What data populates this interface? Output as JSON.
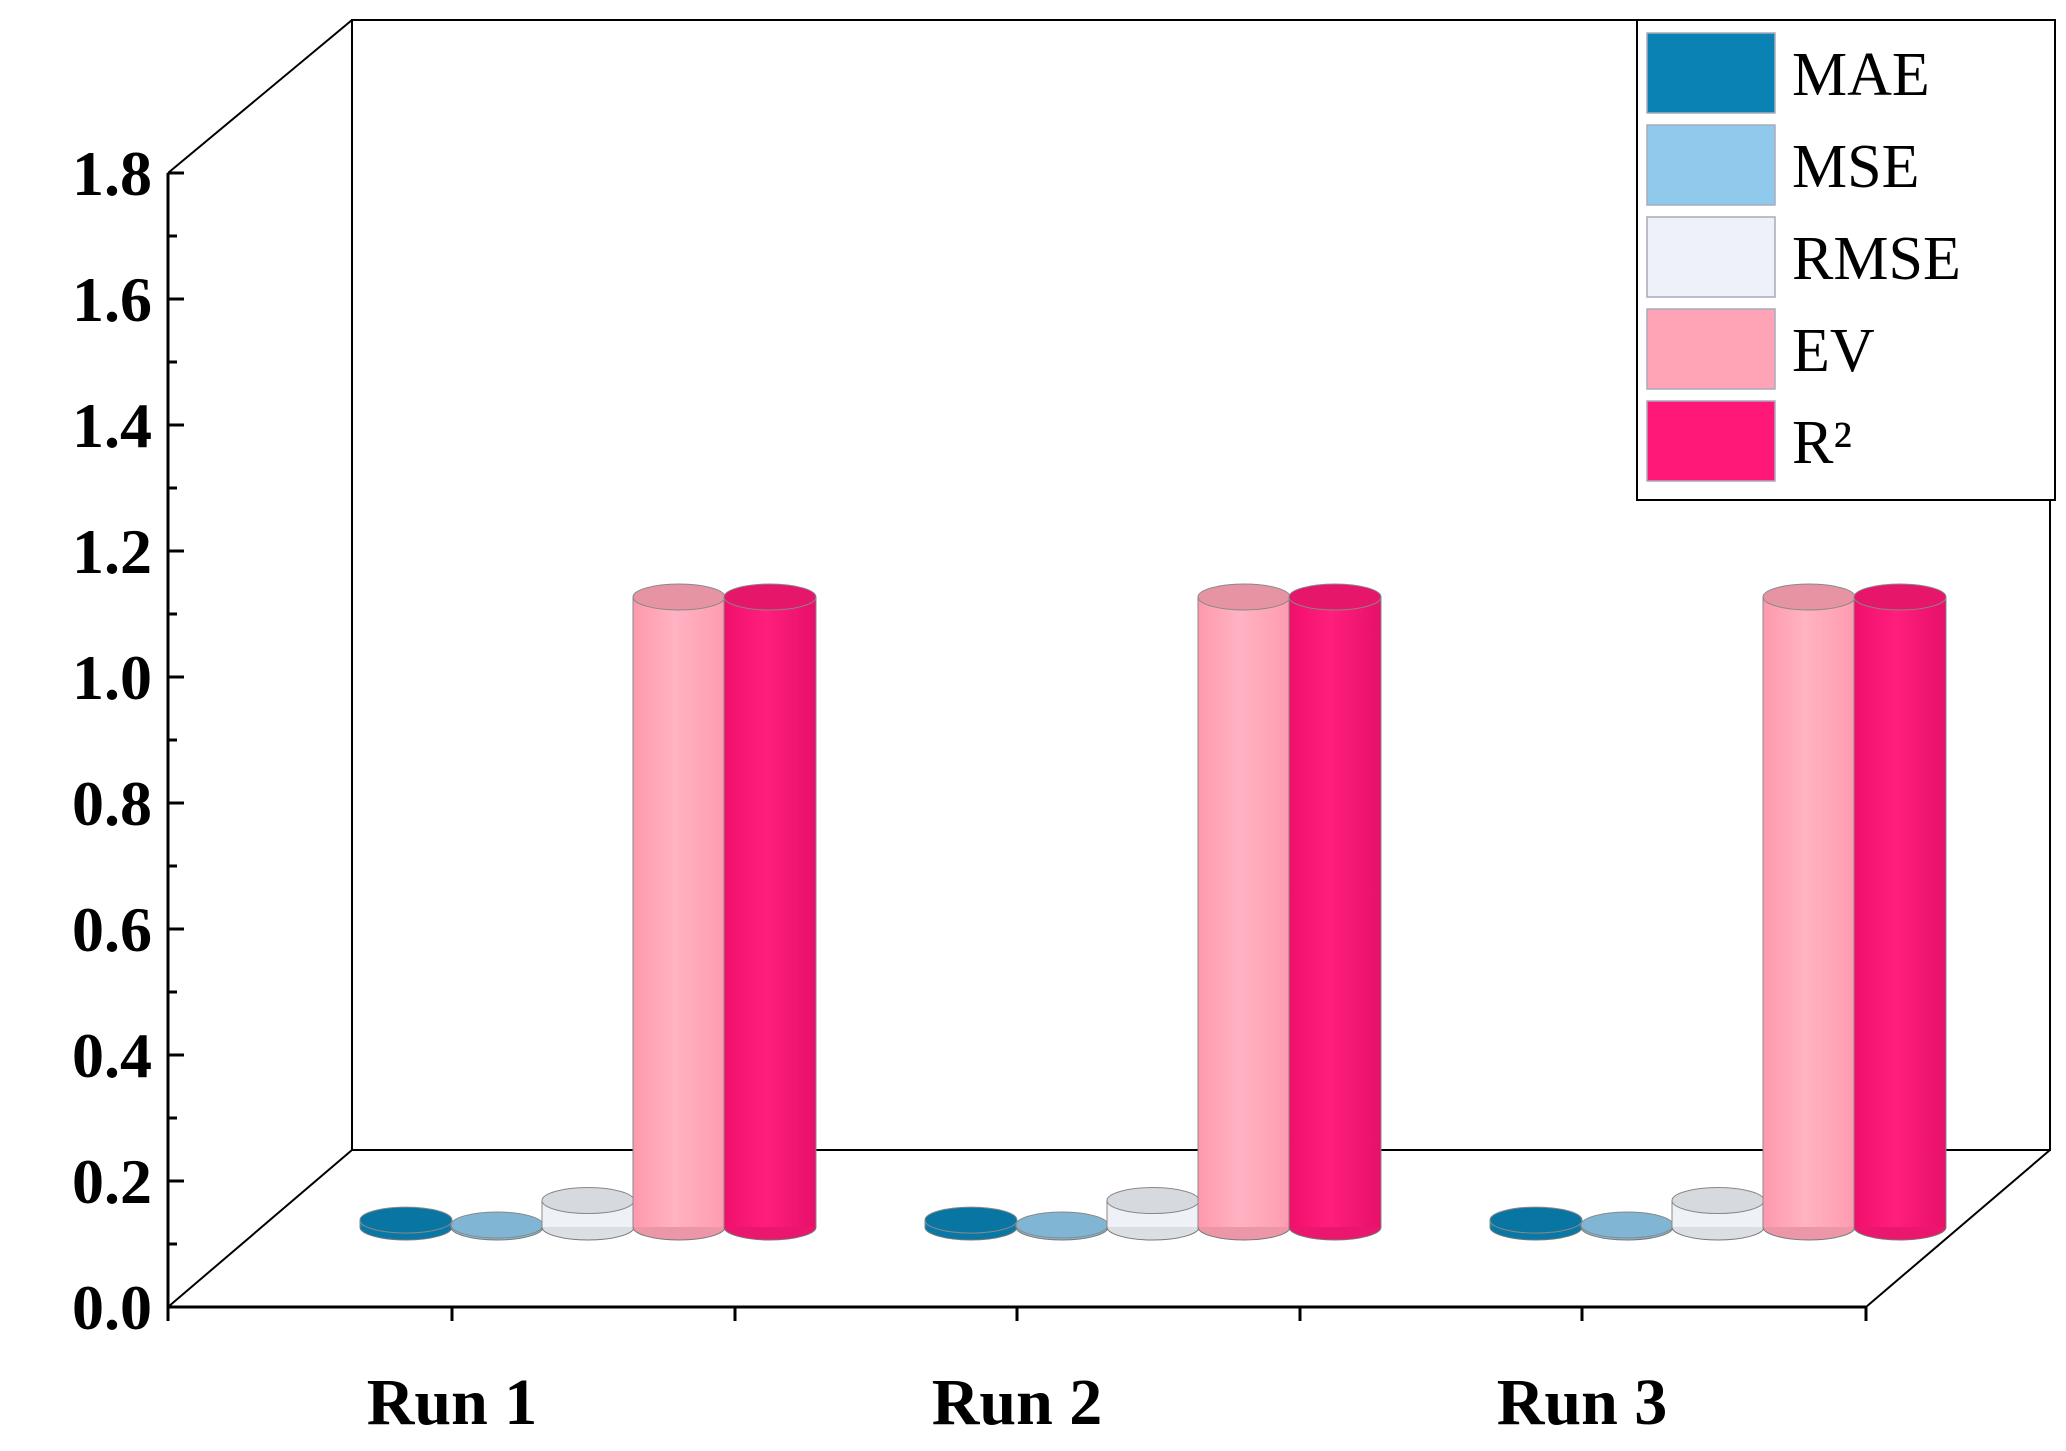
{
  "chart_data": {
    "type": "bar",
    "style": "3d-cylinder",
    "categories": [
      "Run 1",
      "Run 2",
      "Run 3"
    ],
    "series": [
      {
        "name": "MAE",
        "color": "#0a82b4",
        "values": [
          0.011,
          0.011,
          0.011
        ]
      },
      {
        "name": "MSE",
        "color": "#8fc9ec",
        "values": [
          0.002,
          0.002,
          0.002
        ]
      },
      {
        "name": "RMSE",
        "color": "#eef2f8",
        "values": [
          0.042,
          0.042,
          0.042
        ]
      },
      {
        "name": "EV",
        "color": "#ffa4b6",
        "values": [
          1.0,
          1.0,
          1.0
        ]
      },
      {
        "name": "R²",
        "color": "#ff1877",
        "values": [
          1.0,
          1.0,
          1.0
        ]
      }
    ],
    "yticks": [
      "0.0",
      "0.2",
      "0.4",
      "0.6",
      "0.8",
      "1.0",
      "1.2",
      "1.4",
      "1.6",
      "1.8"
    ],
    "ylim": [
      0,
      1.8
    ],
    "title": "",
    "xlabel": "",
    "ylabel": "",
    "legend": "top-right",
    "grid": false
  }
}
